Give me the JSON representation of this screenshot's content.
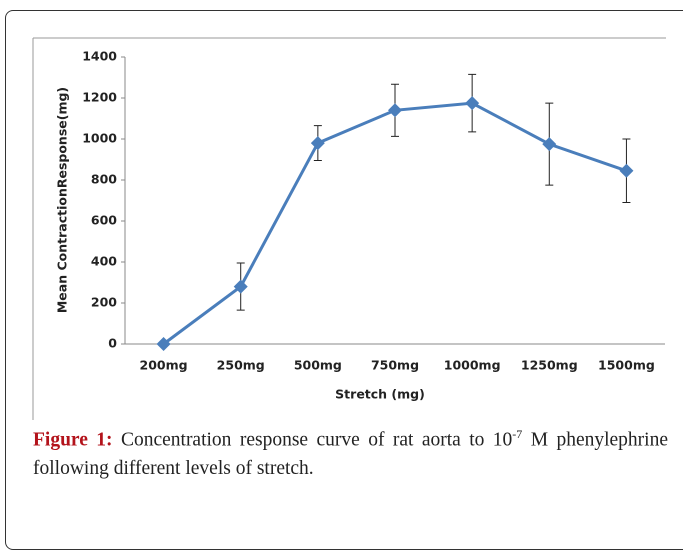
{
  "chart_data": {
    "type": "line",
    "categories": [
      "200mg",
      "250mg",
      "500mg",
      "750mg",
      "1000mg",
      "1250mg",
      "1500mg"
    ],
    "series": [
      {
        "color": "#4a7ebb",
        "values": [
          0,
          280,
          980,
          1140,
          1175,
          975,
          845
        ],
        "errors": [
          0,
          115,
          85,
          127,
          140,
          200,
          155
        ]
      }
    ],
    "xlabel": "Stretch (mg)",
    "ylabel": "Mean ContractionResponse(mg)",
    "ylim": [
      0,
      1400
    ],
    "yticks": [
      0,
      200,
      400,
      600,
      800,
      1000,
      1200,
      1400
    ],
    "grid": false
  },
  "caption": {
    "label": "Figure 1:",
    "text_before": " Concentration response curve of rat aorta to 10",
    "superscript": "-7",
    "text_after": " M phenylephrine following different levels of stretch."
  }
}
